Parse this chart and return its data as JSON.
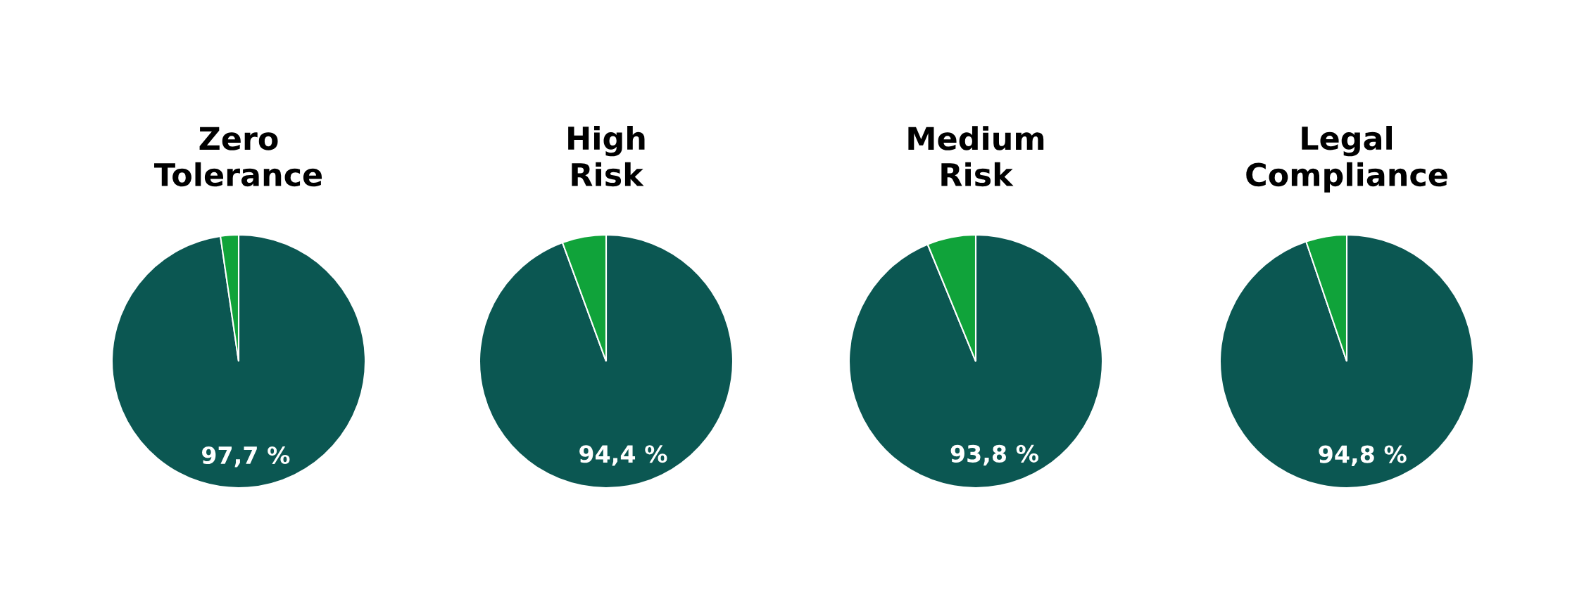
{
  "chart_data": [
    {
      "type": "pie",
      "title": "Zero\nTolerance",
      "categories": [
        null,
        null
      ],
      "values": [
        97.7,
        2.3
      ],
      "colors": [
        "#0b5752",
        "#10a33a"
      ],
      "value_labels": [
        "97,7 %",
        null
      ]
    },
    {
      "type": "pie",
      "title": "High\nRisk",
      "categories": [
        null,
        null
      ],
      "values": [
        94.4,
        5.6
      ],
      "colors": [
        "#0b5752",
        "#10a33a"
      ],
      "value_labels": [
        "94,4 %",
        null
      ]
    },
    {
      "type": "pie",
      "title": "Medium\nRisk",
      "categories": [
        null,
        null
      ],
      "values": [
        93.8,
        6.2
      ],
      "colors": [
        "#0b5752",
        "#10a33a"
      ],
      "value_labels": [
        "93,8 %",
        null
      ]
    },
    {
      "type": "pie",
      "title": "Legal\nCompliance",
      "categories": [
        null,
        null
      ],
      "values": [
        94.8,
        5.2
      ],
      "colors": [
        "#0b5752",
        "#10a33a"
      ],
      "value_labels": [
        "94,8 %",
        null
      ]
    }
  ]
}
